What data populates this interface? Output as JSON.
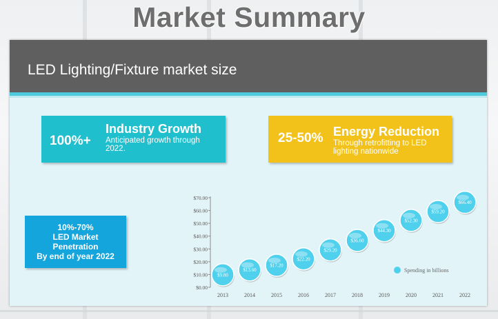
{
  "page_title": "Market Summary",
  "slide": {
    "header": "LED Lighting/Fixture market size",
    "growth": {
      "stat": "100%+",
      "title": "Industry Growth",
      "sub_line1": "Anticipated growth through",
      "sub_line2": "2022."
    },
    "energy": {
      "stat": "25-50%",
      "title": "Energy Reduction",
      "sub_line1": "Through retrofitting to LED",
      "sub_line2": "lighting nationwide"
    },
    "penetration": {
      "line1": "10%-70%",
      "line2": "LED Market",
      "line3": "Penetration",
      "line4": "By end of year 2022"
    }
  },
  "colors": {
    "teal": "#1fbfce",
    "yellow": "#f2c11a",
    "blue": "#14a5dc",
    "bubble": "#4fd0ec",
    "header": "#5f5f5f"
  },
  "chart_data": {
    "type": "scatter",
    "categories": [
      "2013",
      "2014",
      "2015",
      "2016",
      "2017",
      "2018",
      "2019",
      "2020",
      "2021",
      "2022"
    ],
    "series": [
      {
        "name": "Spending in billions",
        "values": [
          9.8,
          13.6,
          17.2,
          22.2,
          29.2,
          36.6,
          44.3,
          52.3,
          59.2,
          66.4
        ],
        "labels": [
          "$9.80",
          "$13.60",
          "$17.20",
          "$22.20",
          "$29.20",
          "$36.60",
          "$44.30",
          "$52.30",
          "$59.20",
          "$66.40"
        ]
      }
    ],
    "y_ticks": [
      "$0.00",
      "$10.00",
      "$20.00",
      "$30.00",
      "$40.00",
      "$50.00",
      "$60.00",
      "$70.00"
    ],
    "ylim": [
      0,
      70
    ],
    "grid": false,
    "legend_position": "bottom-right",
    "marker": "bubble"
  }
}
